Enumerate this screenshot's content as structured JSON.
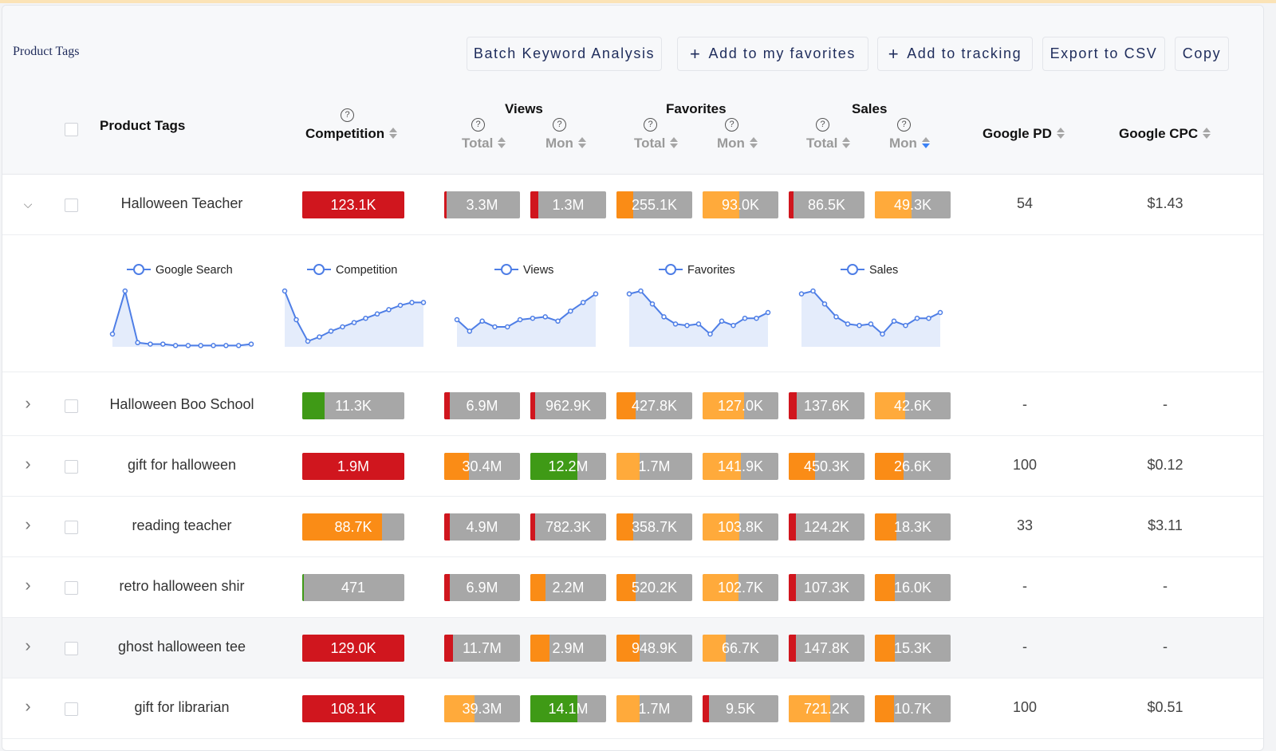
{
  "page_title": "Product Tags",
  "toolbar": {
    "batch": "Batch Keyword Analysis",
    "favorites": "Add to my favorites",
    "tracking": "Add to tracking",
    "export": "Export to CSV",
    "copy": "Copy",
    "plus": "+"
  },
  "header": {
    "tags": "Product Tags",
    "competition": "Competition",
    "views": "Views",
    "favorites": "Favorites",
    "sales": "Sales",
    "total": "Total",
    "mon": "Mon",
    "google_pd": "Google PD",
    "google_cpc": "Google CPC",
    "help": "?"
  },
  "colors": {
    "red": "#d0161e",
    "green": "#3f9a16",
    "orange": "#fa8c16",
    "light_orange": "#ffaa3b",
    "gray": "#a7a7a7",
    "line": "#4e7ee6",
    "area": "#e4ecfb"
  },
  "chart_legends": [
    "Google Search",
    "Competition",
    "Views",
    "Favorites",
    "Sales"
  ],
  "chart_data": [
    {
      "type": "area",
      "title": "",
      "series": [
        {
          "name": "Google Search",
          "values": [
            10,
            40,
            4,
            3,
            3,
            2,
            2,
            2,
            2,
            2,
            2,
            3
          ]
        }
      ]
    },
    {
      "type": "area",
      "title": "",
      "series": [
        {
          "name": "Competition",
          "values": [
            40,
            20,
            5,
            8,
            12,
            15,
            18,
            21,
            24,
            27,
            30,
            32,
            32
          ]
        }
      ]
    },
    {
      "type": "area",
      "title": "",
      "series": [
        {
          "name": "Views",
          "values": [
            20,
            12,
            19,
            15,
            15,
            20,
            21,
            22,
            19,
            26,
            32,
            38
          ]
        }
      ]
    },
    {
      "type": "area",
      "title": "",
      "series": [
        {
          "name": "Favorites",
          "values": [
            38,
            40,
            31,
            22,
            17,
            16,
            17,
            10,
            19,
            16,
            21,
            21,
            25
          ]
        }
      ]
    },
    {
      "type": "area",
      "title": "",
      "series": [
        {
          "name": "Sales",
          "values": [
            38,
            40,
            31,
            22,
            17,
            16,
            17,
            10,
            19,
            16,
            21,
            21,
            25
          ]
        }
      ]
    }
  ],
  "rows": [
    {
      "name": "Halloween Teacher",
      "expand": "⌵",
      "expanded": true,
      "highlight": false,
      "comp": {
        "text": "123.1K",
        "color": "#d0161e",
        "fill": 1.0
      },
      "metrics": [
        {
          "text": "3.3M",
          "color": "#d0161e",
          "fill": 0.03
        },
        {
          "text": "1.3M",
          "color": "#d0161e",
          "fill": 0.1
        },
        {
          "text": "255.1K",
          "color": "#fa8c16",
          "fill": 0.22
        },
        {
          "text": "93.0K",
          "color": "#ffaa3b",
          "fill": 0.48
        },
        {
          "text": "86.5K",
          "color": "#d0161e",
          "fill": 0.06
        },
        {
          "text": "49.3K",
          "color": "#ffaa3b",
          "fill": 0.48
        }
      ],
      "pd": "54",
      "cpc": "$1.43"
    },
    {
      "name": "Halloween Boo School",
      "expand": "›",
      "expanded": false,
      "highlight": false,
      "comp": {
        "text": "11.3K",
        "color": "#3f9a16",
        "fill": 0.22
      },
      "metrics": [
        {
          "text": "6.9M",
          "color": "#d0161e",
          "fill": 0.07
        },
        {
          "text": "962.9K",
          "color": "#d0161e",
          "fill": 0.06
        },
        {
          "text": "427.8K",
          "color": "#fa8c16",
          "fill": 0.25
        },
        {
          "text": "127.0K",
          "color": "#ffaa3b",
          "fill": 0.55
        },
        {
          "text": "137.6K",
          "color": "#d0161e",
          "fill": 0.1
        },
        {
          "text": "42.6K",
          "color": "#ffaa3b",
          "fill": 0.4
        }
      ],
      "pd": "-",
      "cpc": "-"
    },
    {
      "name": "gift for halloween",
      "expand": "›",
      "expanded": false,
      "highlight": false,
      "comp": {
        "text": "1.9M",
        "color": "#d0161e",
        "fill": 1.0
      },
      "metrics": [
        {
          "text": "30.4M",
          "color": "#fa8c16",
          "fill": 0.33
        },
        {
          "text": "12.2M",
          "color": "#3f9a16",
          "fill": 0.62
        },
        {
          "text": "1.7M",
          "color": "#ffaa3b",
          "fill": 0.3
        },
        {
          "text": "141.9K",
          "color": "#ffaa3b",
          "fill": 0.5
        },
        {
          "text": "450.3K",
          "color": "#fa8c16",
          "fill": 0.35
        },
        {
          "text": "26.6K",
          "color": "#fa8c16",
          "fill": 0.38
        }
      ],
      "pd": "100",
      "cpc": "$0.12"
    },
    {
      "name": "reading teacher",
      "expand": "›",
      "expanded": false,
      "highlight": false,
      "comp": {
        "text": "88.7K",
        "color": "#fa8c16",
        "fill": 0.78
      },
      "metrics": [
        {
          "text": "4.9M",
          "color": "#d0161e",
          "fill": 0.07
        },
        {
          "text": "782.3K",
          "color": "#d0161e",
          "fill": 0.06
        },
        {
          "text": "358.7K",
          "color": "#fa8c16",
          "fill": 0.22
        },
        {
          "text": "103.8K",
          "color": "#ffaa3b",
          "fill": 0.48
        },
        {
          "text": "124.2K",
          "color": "#d0161e",
          "fill": 0.09
        },
        {
          "text": "18.3K",
          "color": "#fa8c16",
          "fill": 0.28
        }
      ],
      "pd": "33",
      "cpc": "$3.11"
    },
    {
      "name": "retro halloween shir",
      "expand": "›",
      "expanded": false,
      "highlight": false,
      "comp": {
        "text": "471",
        "color": "#3f9a16",
        "fill": 0.015
      },
      "metrics": [
        {
          "text": "6.9M",
          "color": "#d0161e",
          "fill": 0.07
        },
        {
          "text": "2.2M",
          "color": "#fa8c16",
          "fill": 0.2
        },
        {
          "text": "520.2K",
          "color": "#fa8c16",
          "fill": 0.25
        },
        {
          "text": "102.7K",
          "color": "#ffaa3b",
          "fill": 0.47
        },
        {
          "text": "107.3K",
          "color": "#d0161e",
          "fill": 0.09
        },
        {
          "text": "16.0K",
          "color": "#fa8c16",
          "fill": 0.26
        }
      ],
      "pd": "-",
      "cpc": "-"
    },
    {
      "name": "ghost halloween tee",
      "expand": "›",
      "expanded": false,
      "highlight": true,
      "comp": {
        "text": "129.0K",
        "color": "#d0161e",
        "fill": 1.0
      },
      "metrics": [
        {
          "text": "11.7M",
          "color": "#d0161e",
          "fill": 0.12
        },
        {
          "text": "2.9M",
          "color": "#fa8c16",
          "fill": 0.25
        },
        {
          "text": "948.9K",
          "color": "#fa8c16",
          "fill": 0.3
        },
        {
          "text": "66.7K",
          "color": "#ffaa3b",
          "fill": 0.3
        },
        {
          "text": "147.8K",
          "color": "#d0161e",
          "fill": 0.09
        },
        {
          "text": "15.3K",
          "color": "#fa8c16",
          "fill": 0.26
        }
      ],
      "pd": "-",
      "cpc": "-"
    },
    {
      "name": "gift for librarian",
      "expand": "›",
      "expanded": false,
      "highlight": false,
      "comp": {
        "text": "108.1K",
        "color": "#d0161e",
        "fill": 1.0
      },
      "metrics": [
        {
          "text": "39.3M",
          "color": "#ffaa3b",
          "fill": 0.4
        },
        {
          "text": "14.1M",
          "color": "#3f9a16",
          "fill": 0.62
        },
        {
          "text": "1.7M",
          "color": "#ffaa3b",
          "fill": 0.3
        },
        {
          "text": "9.5K",
          "color": "#d0161e",
          "fill": 0.08
        },
        {
          "text": "721.2K",
          "color": "#ffaa3b",
          "fill": 0.55
        },
        {
          "text": "10.7K",
          "color": "#fa8c16",
          "fill": 0.25
        }
      ],
      "pd": "100",
      "cpc": "$0.51"
    }
  ]
}
